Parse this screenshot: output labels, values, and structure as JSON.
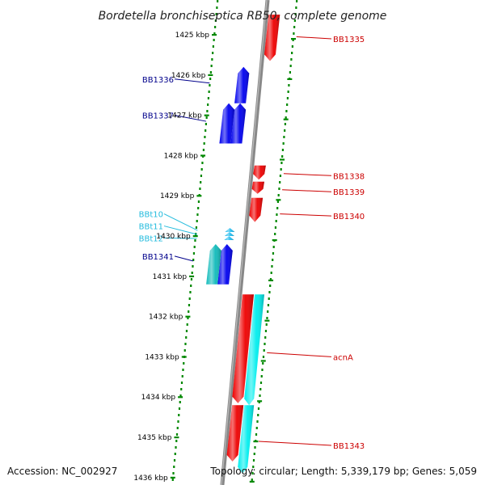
{
  "title": "Bordetella bronchiseptica RB50, complete genome",
  "footer": {
    "accession": "Accession: NC_002927",
    "topology": "Topology: circular; Length: 5,339,179 bp; Genes: 5,059"
  },
  "ticks": [
    {
      "kbp": 1425,
      "label": "1425 kbp"
    },
    {
      "kbp": 1426,
      "label": "1426 kbp"
    },
    {
      "kbp": 1427,
      "label": "1427 kbp"
    },
    {
      "kbp": 1428,
      "label": "1428 kbp"
    },
    {
      "kbp": 1429,
      "label": "1429 kbp"
    },
    {
      "kbp": 1430,
      "label": "1430 kbp"
    },
    {
      "kbp": 1431,
      "label": "1431 kbp"
    },
    {
      "kbp": 1432,
      "label": "1432 kbp"
    },
    {
      "kbp": 1433,
      "label": "1433 kbp"
    },
    {
      "kbp": 1434,
      "label": "1434 kbp"
    },
    {
      "kbp": 1435,
      "label": "1435 kbp"
    },
    {
      "kbp": 1436,
      "label": "1436 kbp"
    }
  ],
  "colors": {
    "forward_cds": "#0000ee",
    "reverse_cds": "#ee0000",
    "trna": "#22bbee",
    "forward_feature": "#11bbbb",
    "reverse_feature": "#00eeee",
    "forward_label": "#00008b",
    "reverse_label": "#cc0000",
    "trna_label": "#22bbdd",
    "backbone": "#888888",
    "tick_dots": "#008800"
  },
  "genes": [
    {
      "name": "BB1335",
      "side": "right",
      "track": "reverse",
      "start_kbp": 1424.5,
      "end_kbp": 1425.65,
      "color_key": "reverse_cds"
    },
    {
      "name": "BB1336",
      "side": "left",
      "track": "forward",
      "start_kbp": 1425.8,
      "end_kbp": 1426.7,
      "color_key": "forward_cds"
    },
    {
      "name": "BB1337",
      "side": "left",
      "track": "forward",
      "start_kbp": 1426.7,
      "end_kbp": 1427.7,
      "color_key": "forward_cds"
    },
    {
      "name": "BB1337",
      "side": "none",
      "track": "forward_outer",
      "start_kbp": 1426.7,
      "end_kbp": 1427.7,
      "color_key": "forward_cds"
    },
    {
      "name": "BB1338",
      "side": "right",
      "track": "reverse",
      "start_kbp": 1428.25,
      "end_kbp": 1428.6,
      "color_key": "reverse_cds"
    },
    {
      "name": "BB1339",
      "side": "right",
      "track": "reverse",
      "start_kbp": 1428.65,
      "end_kbp": 1428.95,
      "color_key": "reverse_cds"
    },
    {
      "name": "BB1340",
      "side": "right",
      "track": "reverse",
      "start_kbp": 1429.05,
      "end_kbp": 1429.65,
      "color_key": "reverse_cds"
    },
    {
      "name": "BBt10",
      "side": "left",
      "track": "trna",
      "start_kbp": 1429.82,
      "end_kbp": 1429.9,
      "color_key": "trna"
    },
    {
      "name": "BBt11",
      "side": "left",
      "track": "trna",
      "start_kbp": 1429.92,
      "end_kbp": 1430.0,
      "color_key": "trna"
    },
    {
      "name": "BBt12",
      "side": "left",
      "track": "trna",
      "start_kbp": 1430.02,
      "end_kbp": 1430.1,
      "color_key": "trna"
    },
    {
      "name": "BB1341",
      "side": "left",
      "track": "forward",
      "start_kbp": 1430.2,
      "end_kbp": 1431.2,
      "color_key": "forward_cds"
    },
    {
      "name": "BB1341",
      "side": "none",
      "track": "forward_outer",
      "start_kbp": 1430.2,
      "end_kbp": 1431.2,
      "color_key": "forward_feature"
    },
    {
      "name": "acnA",
      "side": "right",
      "track": "reverse",
      "start_kbp": 1431.45,
      "end_kbp": 1434.15,
      "color_key": "reverse_cds"
    },
    {
      "name": "acnA",
      "side": "none",
      "track": "reverse_outer",
      "start_kbp": 1431.45,
      "end_kbp": 1434.2,
      "color_key": "reverse_feature"
    },
    {
      "name": "BB1343",
      "side": "right",
      "track": "reverse",
      "start_kbp": 1434.2,
      "end_kbp": 1435.6,
      "color_key": "reverse_cds"
    },
    {
      "name": "BB1343",
      "side": "none",
      "track": "reverse_outer",
      "start_kbp": 1434.2,
      "end_kbp": 1435.9,
      "color_key": "reverse_feature"
    }
  ],
  "gene_labels": [
    {
      "text": "BB1335",
      "kbp": 1425.1,
      "side": "right",
      "color_key": "reverse_label",
      "anchor_kbp": 1425.05
    },
    {
      "text": "BB1336",
      "kbp": 1426.1,
      "side": "left",
      "color_key": "forward_label",
      "anchor_kbp": 1426.2
    },
    {
      "text": "BB1337",
      "kbp": 1427.0,
      "side": "left",
      "color_key": "forward_label",
      "anchor_kbp": 1427.15
    },
    {
      "text": "BB1338",
      "kbp": 1428.5,
      "side": "right",
      "color_key": "reverse_label",
      "anchor_kbp": 1428.45
    },
    {
      "text": "BB1339",
      "kbp": 1428.9,
      "side": "right",
      "color_key": "reverse_label",
      "anchor_kbp": 1428.85
    },
    {
      "text": "BB1340",
      "kbp": 1429.5,
      "side": "right",
      "color_key": "reverse_label",
      "anchor_kbp": 1429.45
    },
    {
      "text": "BBt10",
      "kbp": 1429.45,
      "side": "left",
      "color_key": "trna_label",
      "anchor_kbp": 1429.86
    },
    {
      "text": "BBt11",
      "kbp": 1429.75,
      "side": "left",
      "color_key": "trna_label",
      "anchor_kbp": 1429.96
    },
    {
      "text": "BBt12",
      "kbp": 1430.05,
      "side": "left",
      "color_key": "trna_label",
      "anchor_kbp": 1430.06
    },
    {
      "text": "BB1341",
      "kbp": 1430.5,
      "side": "left",
      "color_key": "forward_label",
      "anchor_kbp": 1430.62
    },
    {
      "text": "acnA",
      "kbp": 1433.0,
      "side": "right",
      "color_key": "reverse_label",
      "anchor_kbp": 1432.9
    },
    {
      "text": "BB1343",
      "kbp": 1435.2,
      "side": "right",
      "color_key": "reverse_label",
      "anchor_kbp": 1435.1
    }
  ]
}
